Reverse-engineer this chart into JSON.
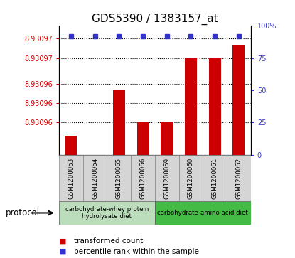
{
  "title": "GDS5390 / 1383157_at",
  "samples": [
    "GSM1200063",
    "GSM1200064",
    "GSM1200065",
    "GSM1200066",
    "GSM1200059",
    "GSM1200060",
    "GSM1200061",
    "GSM1200062"
  ],
  "bar_values": [
    8.930958,
    8.930955,
    8.930965,
    8.93096,
    8.93096,
    8.93097,
    8.93097,
    8.930972
  ],
  "percentile_values": [
    92,
    92,
    92,
    92,
    92,
    92,
    92,
    92
  ],
  "ymin": 8.930955,
  "ymax": 8.930975,
  "ytick_positions": [
    8.93096,
    8.930963,
    8.930966,
    8.93097,
    8.930973
  ],
  "ytick_labels": [
    "8.93096",
    "8.93096",
    "8.93096",
    "8.93097",
    "8.93097"
  ],
  "yticks_right": [
    0,
    25,
    50,
    75,
    100
  ],
  "bar_color": "#cc0000",
  "dot_color": "#3333cc",
  "dot_pct": 92,
  "protocol_groups": [
    {
      "label": "carbohydrate-whey protein\nhydrolysate diet",
      "spans": [
        0,
        4
      ],
      "color": "#bbddbb"
    },
    {
      "label": "carbohydrate-amino acid diet",
      "spans": [
        4,
        8
      ],
      "color": "#44bb44"
    }
  ],
  "legend": [
    {
      "color": "#cc0000",
      "label": "transformed count"
    },
    {
      "color": "#3333cc",
      "label": "percentile rank within the sample"
    }
  ],
  "protocol_label": "protocol"
}
